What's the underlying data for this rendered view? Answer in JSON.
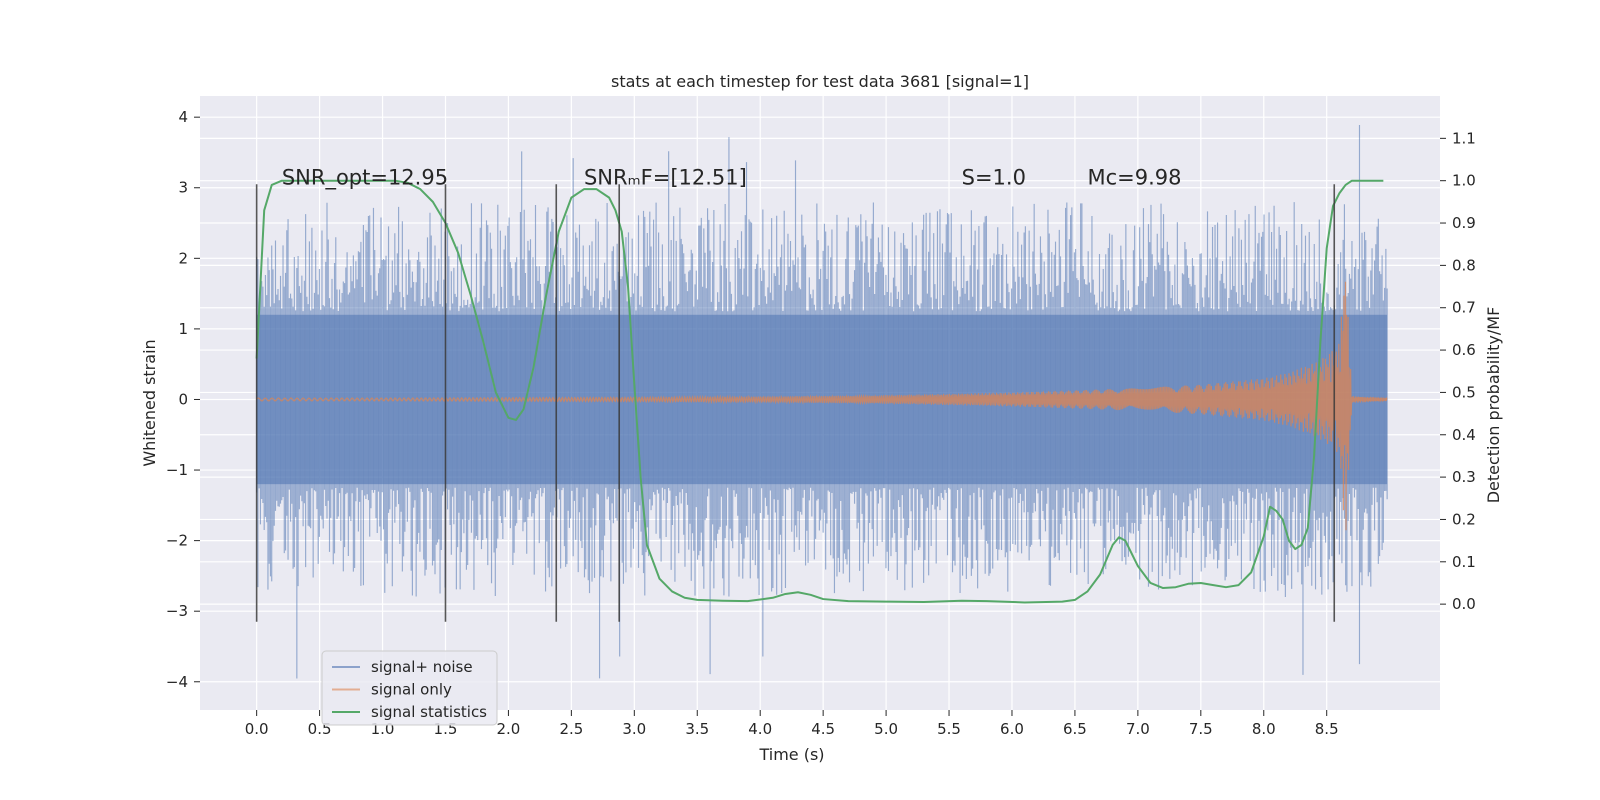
{
  "chart_data": {
    "type": "line",
    "title": "stats at each timestep for test data 3681 [signal=1]",
    "xlabel": "Time (s)",
    "ylabel": "Whitened strain",
    "y2label": "Detection probability/MF",
    "xlim": [
      -0.45,
      9.4
    ],
    "ylim": [
      -4.4,
      4.3
    ],
    "y2lim": [
      -0.25,
      1.2
    ],
    "grid": true,
    "legend_position": "lower-left",
    "x_ticks": [
      "0.0",
      "0.5",
      "1.0",
      "1.5",
      "2.0",
      "2.5",
      "3.0",
      "3.5",
      "4.0",
      "4.5",
      "5.0",
      "5.5",
      "6.0",
      "6.5",
      "7.0",
      "7.5",
      "8.0",
      "8.5"
    ],
    "y_ticks": [
      "4",
      "3",
      "2",
      "1",
      "0",
      "−1",
      "−2",
      "−3",
      "−4"
    ],
    "y2_ticks": [
      "0.0",
      "0.1",
      "0.2",
      "0.3",
      "0.4",
      "0.5",
      "0.6",
      "0.7",
      "0.8",
      "0.9",
      "1.0",
      "1.1"
    ],
    "annotations": [
      {
        "name": "snr-opt",
        "x": 0.2,
        "y": 3.0,
        "text": "SNR_opt=12.95",
        "italic": false
      },
      {
        "name": "snr-mf",
        "x": 2.6,
        "y": 3.0,
        "text": "SNRₘF=[12.51]",
        "italic": false
      },
      {
        "name": "s-value",
        "x": 5.6,
        "y": 3.0,
        "text": "S=1.0",
        "italic": false
      },
      {
        "name": "chirp-mass",
        "x": 6.6,
        "y": 3.0,
        "text": "Mᴄ=9.98",
        "italic": false
      }
    ],
    "vertical_lines": [
      0.0,
      1.5,
      2.38,
      2.88,
      8.56
    ],
    "series": [
      {
        "name": "signal+ noise",
        "color": "#4c72b0",
        "kind": "noise_band",
        "x_range": [
          0.0,
          8.98
        ],
        "core_amplitude": 1.2,
        "peak_amplitude": 3.9
      },
      {
        "name": "signal only",
        "color": "#dd8452",
        "kind": "chirp",
        "x": [
          0.0,
          1.0,
          2.0,
          3.0,
          4.0,
          5.0,
          5.5,
          6.0,
          6.5,
          7.0,
          7.5,
          8.0,
          8.2,
          8.4,
          8.5,
          8.6,
          8.65,
          8.7,
          8.98
        ],
        "envelope": [
          0.02,
          0.02,
          0.025,
          0.03,
          0.04,
          0.06,
          0.08,
          0.1,
          0.13,
          0.16,
          0.21,
          0.3,
          0.38,
          0.52,
          0.62,
          0.8,
          2.0,
          0.05,
          0.02
        ]
      },
      {
        "name": "signal statistics",
        "color": "#55a868",
        "kind": "line",
        "axis": "right",
        "x": [
          0.0,
          0.06,
          0.12,
          0.2,
          0.35,
          0.6,
          0.9,
          1.1,
          1.2,
          1.3,
          1.4,
          1.5,
          1.6,
          1.7,
          1.8,
          1.9,
          2.0,
          2.06,
          2.12,
          2.2,
          2.3,
          2.4,
          2.5,
          2.6,
          2.7,
          2.8,
          2.85,
          2.9,
          2.95,
          3.0,
          3.05,
          3.1,
          3.2,
          3.3,
          3.4,
          3.5,
          3.7,
          3.9,
          4.1,
          4.2,
          4.3,
          4.4,
          4.5,
          4.7,
          5.0,
          5.3,
          5.6,
          5.8,
          6.1,
          6.4,
          6.5,
          6.6,
          6.7,
          6.8,
          6.85,
          6.9,
          7.0,
          7.1,
          7.2,
          7.3,
          7.4,
          7.5,
          7.6,
          7.7,
          7.8,
          7.9,
          8.0,
          8.05,
          8.1,
          8.15,
          8.2,
          8.25,
          8.3,
          8.35,
          8.4,
          8.45,
          8.5,
          8.55,
          8.6,
          8.65,
          8.7,
          8.75,
          8.8,
          8.9,
          8.95
        ],
        "y": [
          0.58,
          0.93,
          0.99,
          1.0,
          1.0,
          1.0,
          1.0,
          1.0,
          0.995,
          0.98,
          0.95,
          0.9,
          0.83,
          0.73,
          0.62,
          0.5,
          0.44,
          0.435,
          0.46,
          0.56,
          0.73,
          0.88,
          0.96,
          0.98,
          0.98,
          0.96,
          0.93,
          0.88,
          0.75,
          0.52,
          0.3,
          0.14,
          0.06,
          0.03,
          0.015,
          0.01,
          0.008,
          0.007,
          0.015,
          0.024,
          0.028,
          0.022,
          0.012,
          0.007,
          0.006,
          0.005,
          0.008,
          0.007,
          0.004,
          0.006,
          0.01,
          0.03,
          0.07,
          0.14,
          0.158,
          0.15,
          0.09,
          0.05,
          0.038,
          0.04,
          0.048,
          0.05,
          0.045,
          0.04,
          0.045,
          0.075,
          0.16,
          0.23,
          0.22,
          0.2,
          0.15,
          0.13,
          0.14,
          0.18,
          0.35,
          0.62,
          0.84,
          0.94,
          0.97,
          0.99,
          1.0,
          1.0,
          1.0,
          1.0,
          1.0
        ]
      }
    ]
  }
}
